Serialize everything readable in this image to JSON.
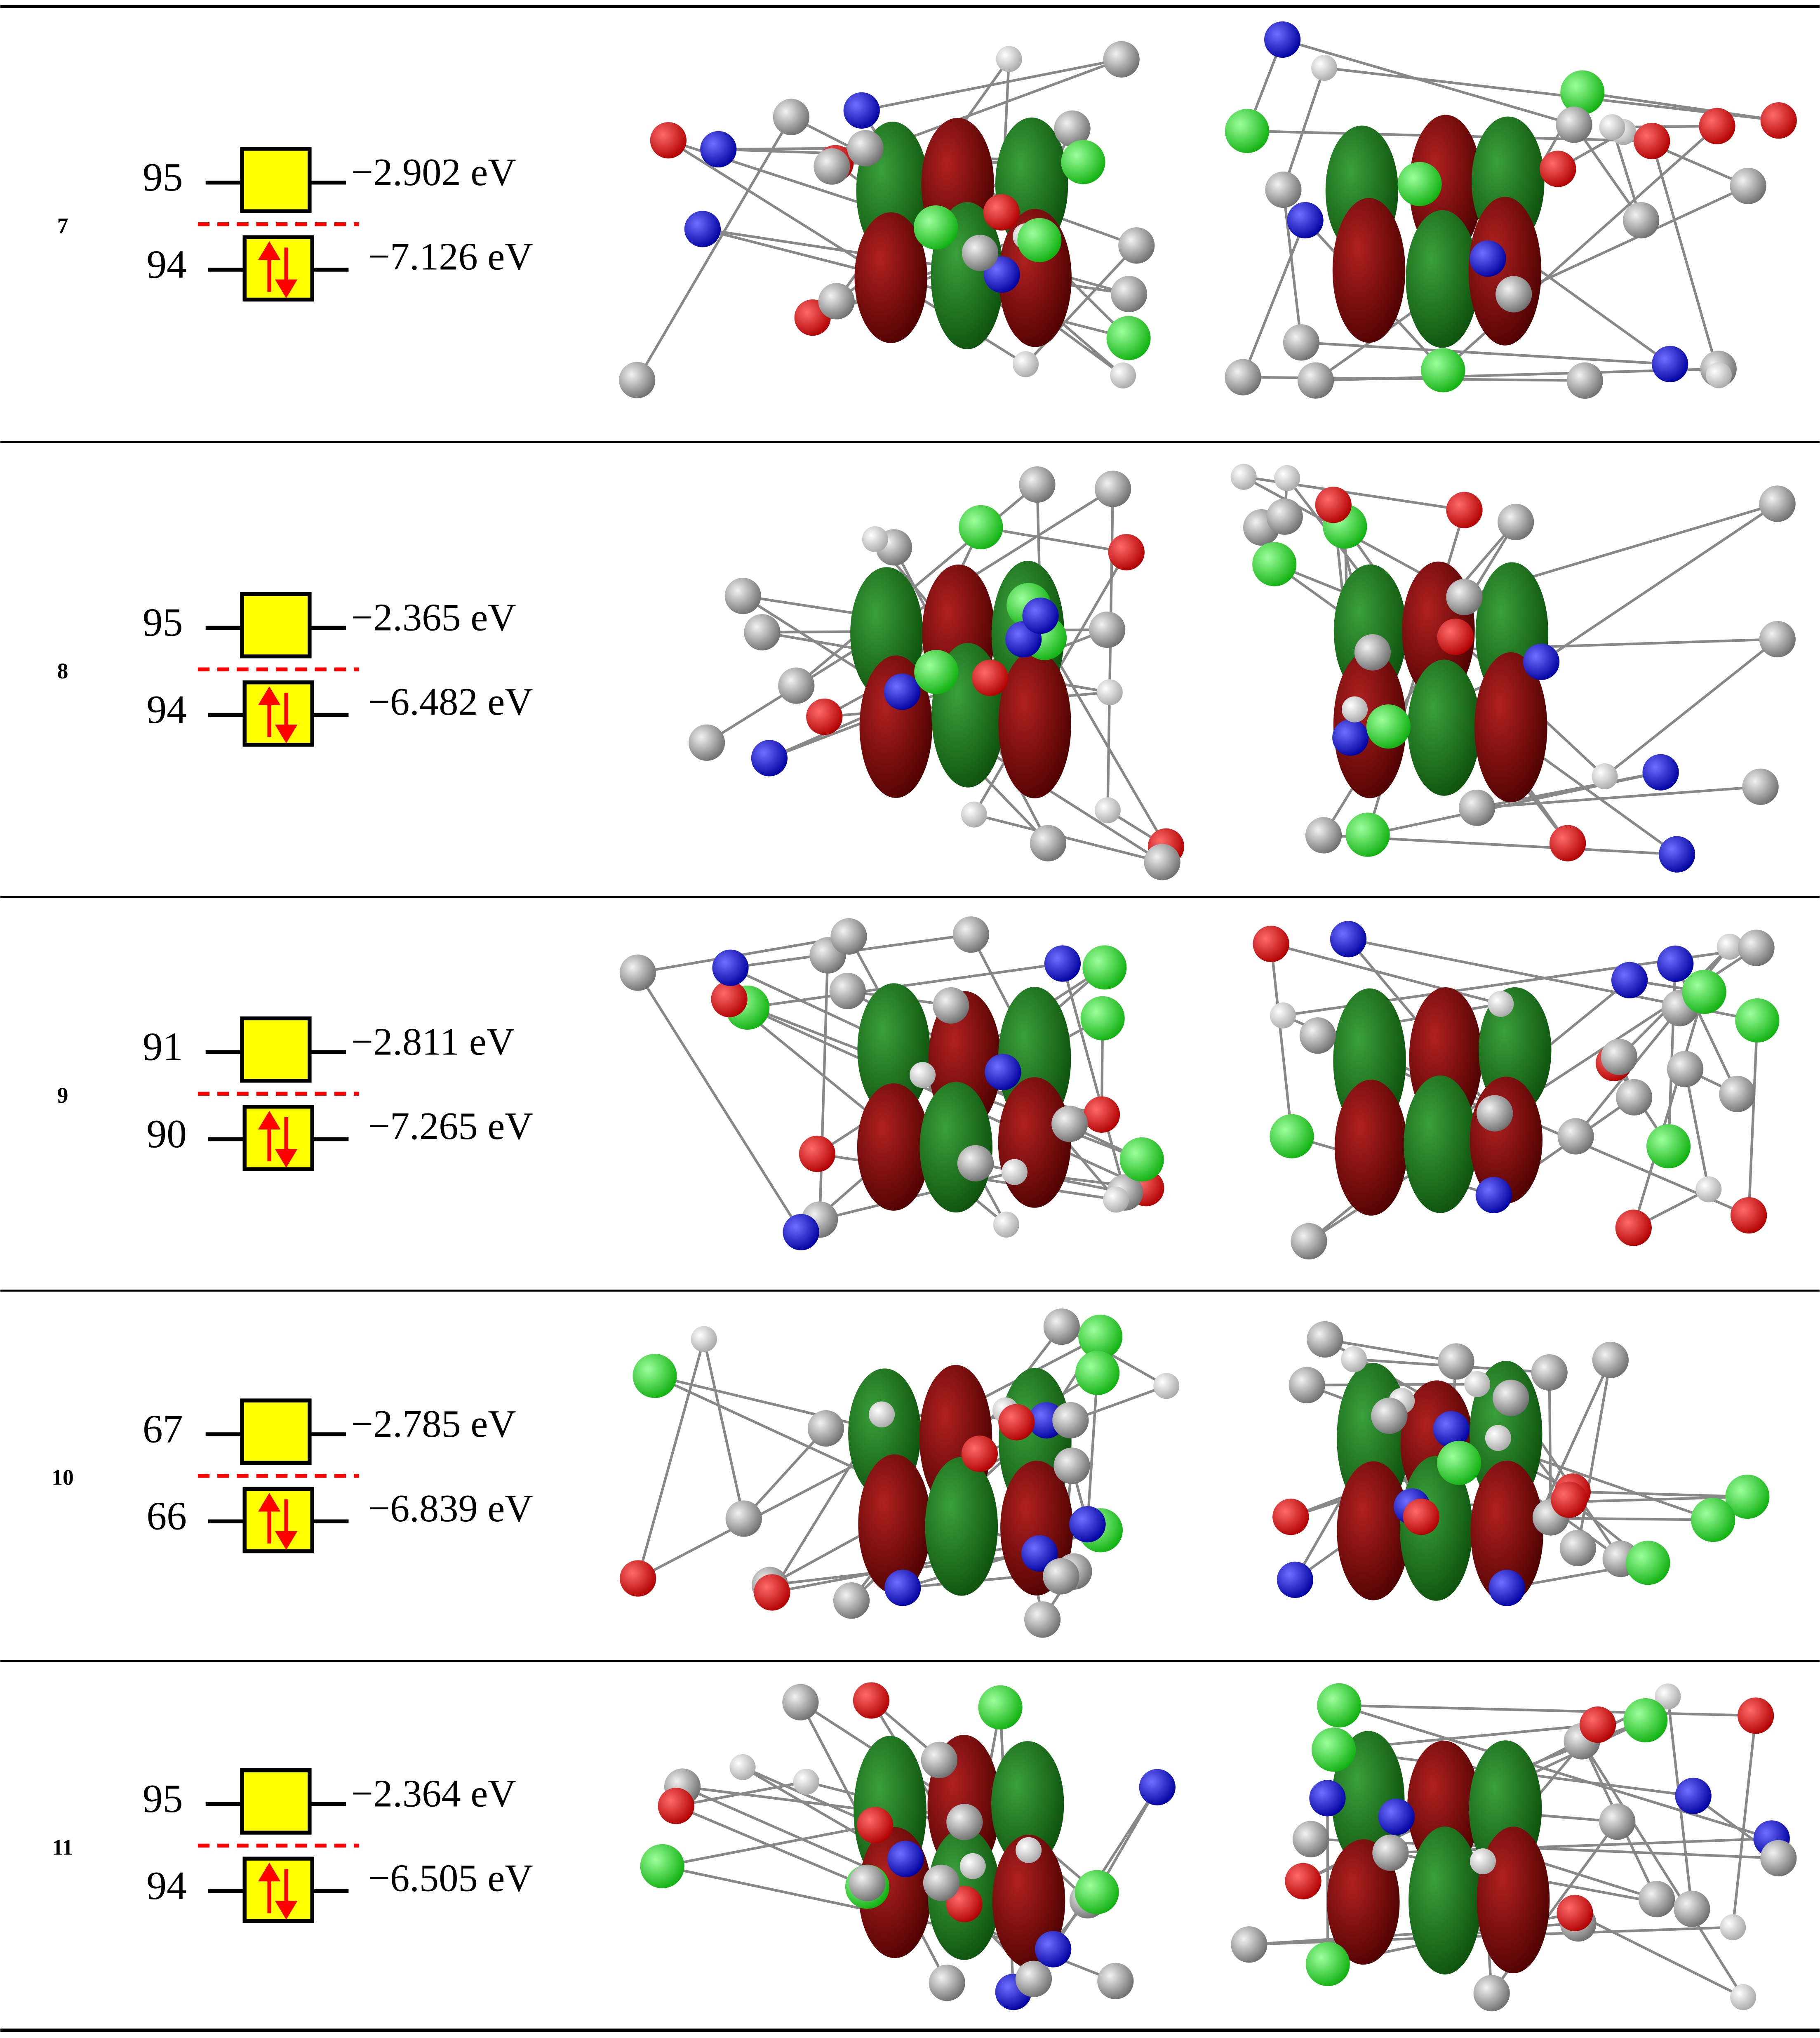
{
  "rows": [
    {
      "label": "7",
      "lumo": {
        "index": "95",
        "energy": "−2.902 eV"
      },
      "homo": {
        "index": "94",
        "energy": "−7.126 eV"
      }
    },
    {
      "label": "8",
      "lumo": {
        "index": "95",
        "energy": "−2.365 eV"
      },
      "homo": {
        "index": "94",
        "energy": "−6.482 eV"
      }
    },
    {
      "label": "9",
      "lumo": {
        "index": "91",
        "energy": "−2.811 eV"
      },
      "homo": {
        "index": "90",
        "energy": "−7.265 eV"
      }
    },
    {
      "label": "10",
      "lumo": {
        "index": "67",
        "energy": "−2.785 eV"
      },
      "homo": {
        "index": "66",
        "energy": "−6.839 eV"
      }
    },
    {
      "label": "11",
      "lumo": {
        "index": "95",
        "energy": "−2.364 eV"
      },
      "homo": {
        "index": "94",
        "energy": "−6.505 eV"
      }
    }
  ]
}
